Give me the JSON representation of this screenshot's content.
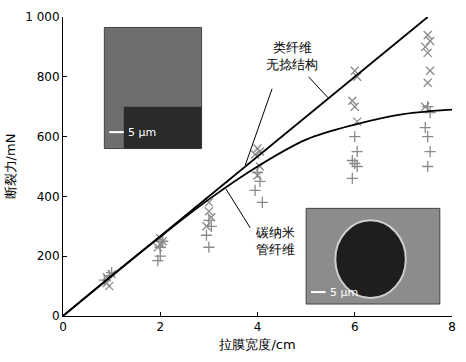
{
  "chart_data": {
    "type": "scatter",
    "x_label": "拉膜宽度/cm",
    "y_label": "断裂力/mN",
    "xlim": [
      0,
      8
    ],
    "xticks": [
      0,
      2,
      4,
      6,
      8
    ],
    "ylim": [
      0,
      1000
    ],
    "yticks": [
      0,
      200,
      400,
      600,
      800,
      {
        "value": 1000,
        "label": "1 000"
      }
    ],
    "grid": false,
    "annotations": [
      {
        "lines": [
          "类纤维",
          "无捻结构"
        ]
      },
      {
        "lines": [
          "碳纳米",
          "管纤维"
        ]
      },
      {
        "lines": [
          "5 μm"
        ]
      },
      {
        "lines": [
          "5 μm"
        ]
      }
    ],
    "series": [
      {
        "type": "scatter",
        "marker": "x",
        "color": "#8a8a8a",
        "x": [
          0.9,
          0.9,
          0.95,
          1.0,
          2.0,
          2.0,
          1.95,
          2.05,
          3.0,
          3.0,
          3.05,
          2.95,
          4.0,
          4.05,
          3.95,
          4.0,
          4.05,
          6.0,
          6.05,
          5.95,
          6.0,
          6.05,
          7.5,
          7.55,
          7.45,
          7.5,
          7.55,
          7.5,
          7.45
        ],
        "values": [
          130,
          110,
          100,
          140,
          260,
          240,
          230,
          250,
          380,
          350,
          330,
          300,
          560,
          550,
          540,
          470,
          500,
          820,
          800,
          720,
          700,
          650,
          940,
          920,
          900,
          880,
          820,
          780,
          700
        ]
      },
      {
        "type": "scatter",
        "marker": "cross",
        "color": "#8a8a8a",
        "x": [
          0.85,
          0.95,
          1.0,
          2.0,
          2.05,
          1.95,
          2.0,
          3.0,
          3.05,
          2.95,
          3.0,
          4.0,
          4.05,
          3.95,
          4.1,
          6.0,
          6.05,
          5.95,
          6.0,
          6.05,
          5.95,
          7.5,
          7.55,
          7.45,
          7.5,
          7.55,
          7.5
        ],
        "values": [
          120,
          135,
          145,
          230,
          250,
          185,
          200,
          320,
          300,
          270,
          230,
          480,
          450,
          420,
          380,
          600,
          550,
          520,
          510,
          500,
          460,
          700,
          680,
          630,
          600,
          550,
          500
        ]
      },
      {
        "type": "line",
        "line_style": "solid",
        "color": "#000000",
        "x": [
          0,
          7.5
        ],
        "values": [
          0,
          1000
        ]
      },
      {
        "type": "line",
        "line_style": "solid",
        "color": "#000000",
        "x": [
          0,
          1,
          2,
          3,
          4,
          5,
          6,
          7,
          8
        ],
        "values": [
          0,
          135,
          265,
          390,
          500,
          590,
          640,
          675,
          690
        ]
      }
    ]
  }
}
